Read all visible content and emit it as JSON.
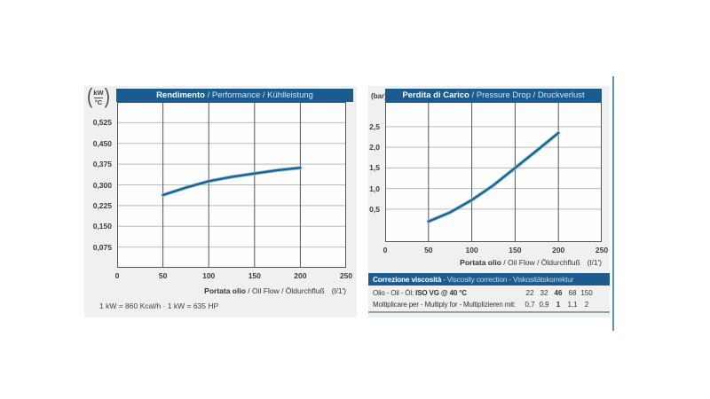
{
  "colors": {
    "header_blue": "#1b5b8d",
    "panel_bg": "#eff1f0",
    "curve": "#1d6290",
    "curve_halo": "#8fc0da",
    "grid_h": "#b8bbbd",
    "grid_v": "#555555",
    "frame": "#555555",
    "edge_rule_blue": "#5e8fba"
  },
  "chart_data": [
    {
      "type": "line",
      "id": "performance",
      "title": "Rendimento / Performance / Kühlleistung",
      "title_bold": "Rendimento",
      "title_rest": " / Performance / Kühlleistung",
      "paren_open": "(",
      "paren_close": ")",
      "y_unit_top": "kW",
      "y_unit_bottom": "°C",
      "xlabel_bold": "Portata olio",
      "xlabel_rest": " / Oil Flow / Öldurchfluß",
      "xlabel_unit": "(l/1')",
      "xlim": [
        0,
        250
      ],
      "ylim": [
        0,
        0.6
      ],
      "grid": true,
      "legend": "none",
      "xticks": [
        0,
        50,
        100,
        150,
        200,
        250
      ],
      "xtick_labels": [
        "0",
        "50",
        "100",
        "150",
        "200",
        "250"
      ],
      "yticks": [
        0.525,
        0.45,
        0.375,
        0.3,
        0.225,
        0.15,
        0.075
      ],
      "ytick_labels": [
        "0,525",
        "0,450",
        "0,375",
        "0,300",
        "0,225",
        "0,150",
        "0,075"
      ],
      "x": [
        50,
        75,
        100,
        125,
        150,
        175,
        200
      ],
      "y": [
        0.263,
        0.29,
        0.313,
        0.329,
        0.341,
        0.353,
        0.362
      ],
      "footnote": "1 kW = 860 Kcal/h · 1 kW = 635 HP"
    },
    {
      "type": "line",
      "id": "pressure-drop",
      "title": "Perdita di Carico / Pressure Drop / Druckverlust",
      "title_bold": "Perdita di Carico",
      "title_rest": " / Pressure Drop / Druckverlust",
      "y_unit": "(bar)",
      "xlabel_bold": "Portata olio",
      "xlabel_rest": " / Oil Flow / Öldurchfluß",
      "xlabel_unit": "(l/1')",
      "xlim": [
        0,
        250
      ],
      "ylim": [
        -0.3,
        3.1
      ],
      "grid": true,
      "legend": "none",
      "xticks": [
        0,
        50,
        100,
        150,
        200,
        250
      ],
      "xtick_labels": [
        "0",
        "50",
        "100",
        "150",
        "200",
        "250"
      ],
      "yticks": [
        2.5,
        2.0,
        1.5,
        1.0,
        0.5
      ],
      "ytick_labels": [
        "2,5",
        "2,0",
        "1,5",
        "1,0",
        "0,5"
      ],
      "x": [
        50,
        75,
        100,
        125,
        150,
        175,
        200
      ],
      "y": [
        0.2,
        0.42,
        0.72,
        1.08,
        1.5,
        1.92,
        2.35
      ]
    },
    {
      "type": "table",
      "id": "viscosity-correction",
      "title": "Correzione viscosità - Viscosity correction - Viskositätskorrektur",
      "title_bold": "Correzione viscosità",
      "title_rest": " - Viscosity correction - Viskositätskorrektur",
      "rows": [
        {
          "label": "Olio - Oil - Öl: ",
          "label_bold": "ISO VG @ 40 °C",
          "values": [
            "22",
            "32",
            "46",
            "68",
            "150"
          ],
          "bold_index": 2
        },
        {
          "label": "Moltiplicare per - Multiply for - Multiplizieren mit:",
          "label_bold": "",
          "values": [
            "0,7",
            "0,9",
            "1",
            "1,1",
            "2"
          ],
          "bold_index": 2
        }
      ]
    }
  ]
}
